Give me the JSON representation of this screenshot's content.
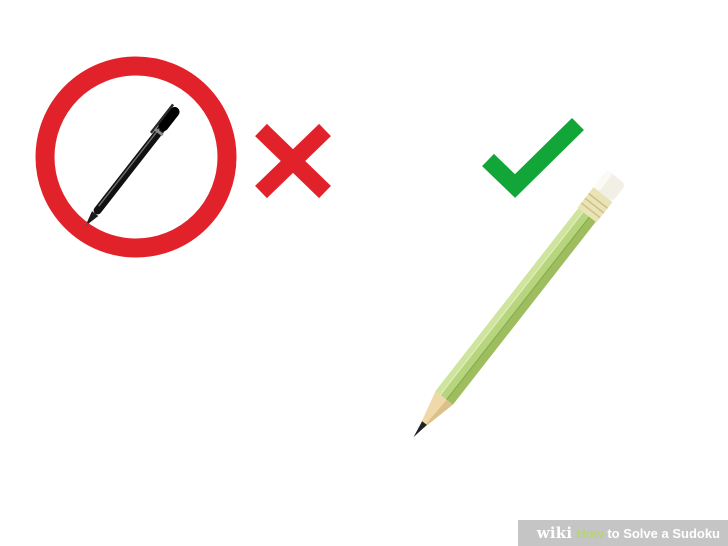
{
  "watermark": {
    "brand": "wiki",
    "how": "How",
    "title_rest": " to Solve a Sudoku"
  },
  "colors": {
    "prohibit_red": "#e2222a",
    "check_green": "#12a537",
    "pencil_green": "#b7d57d",
    "pencil_dark": "#8db14f",
    "eraser": "#f2f0e6",
    "ferrule": "#e9e3b6",
    "wood": "#f0d9a8",
    "graphite": "#222222",
    "pen_black": "#111111"
  },
  "icons": {
    "pen": "pen-icon",
    "prohibition": "prohibition-circle-icon",
    "cross": "cross-icon",
    "check": "checkmark-icon",
    "pencil": "pencil-icon"
  }
}
